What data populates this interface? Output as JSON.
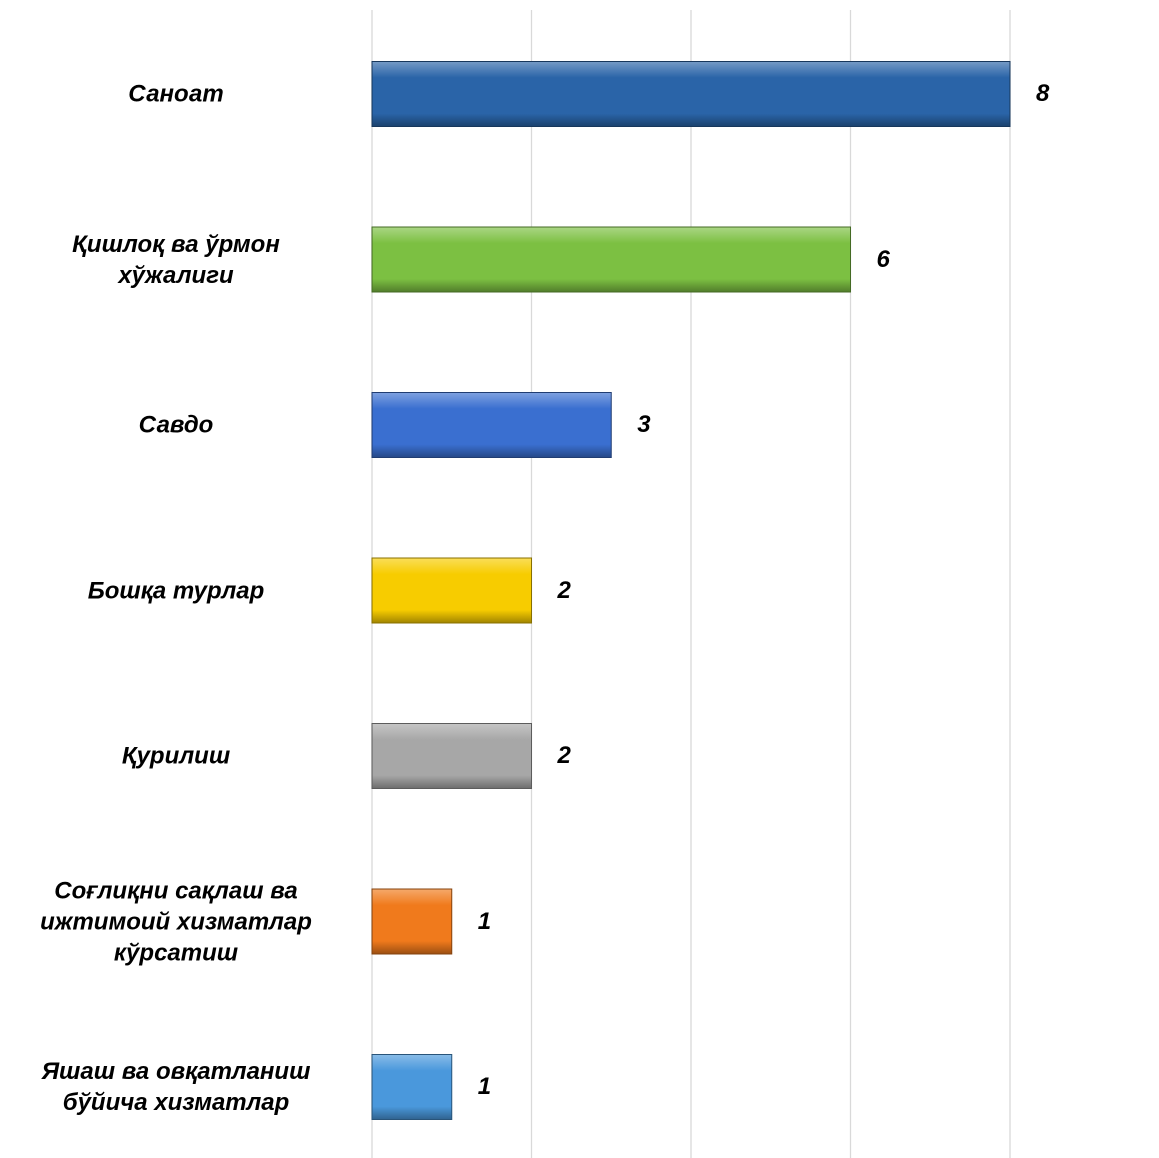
{
  "chart_data": {
    "type": "bar",
    "orientation": "horizontal",
    "categories": [
      "Саноат",
      "Қишлоқ ва ўрмон хўжалиги",
      "Савдо",
      "Бошқа турлар",
      "Қурилиш",
      "Соғлиқни сақлаш ва ижтимоий хизматлар кўрсатиш",
      "Яшаш ва овқатланиш бўйича хизматлар"
    ],
    "category_lines": [
      [
        "Саноат"
      ],
      [
        "Қишлоқ ва ўрмон",
        "хўжалиги"
      ],
      [
        "Савдо"
      ],
      [
        "Бошқа турлар"
      ],
      [
        "Қурилиш"
      ],
      [
        "Соғлиқни сақлаш ва",
        "ижтимоий хизматлар",
        "кўрсатиш"
      ],
      [
        "Яшаш ва овқатланиш",
        "бўйича хизматлар"
      ]
    ],
    "values": [
      8,
      6,
      3,
      2,
      2,
      1,
      1
    ],
    "value_labels": [
      "8",
      "6",
      "3",
      "2",
      "2",
      "1",
      "1"
    ],
    "bar_colors": [
      "#2a64a8",
      "#7cc042",
      "#3a6fd0",
      "#f7cc00",
      "#a7a7a7",
      "#f07a1c",
      "#4a98dc"
    ],
    "xlim": [
      0,
      8
    ],
    "gridline_values": [
      0,
      2,
      4,
      6,
      8
    ],
    "grid": true,
    "legend": "none",
    "title": "",
    "xlabel": "",
    "ylabel": ""
  }
}
